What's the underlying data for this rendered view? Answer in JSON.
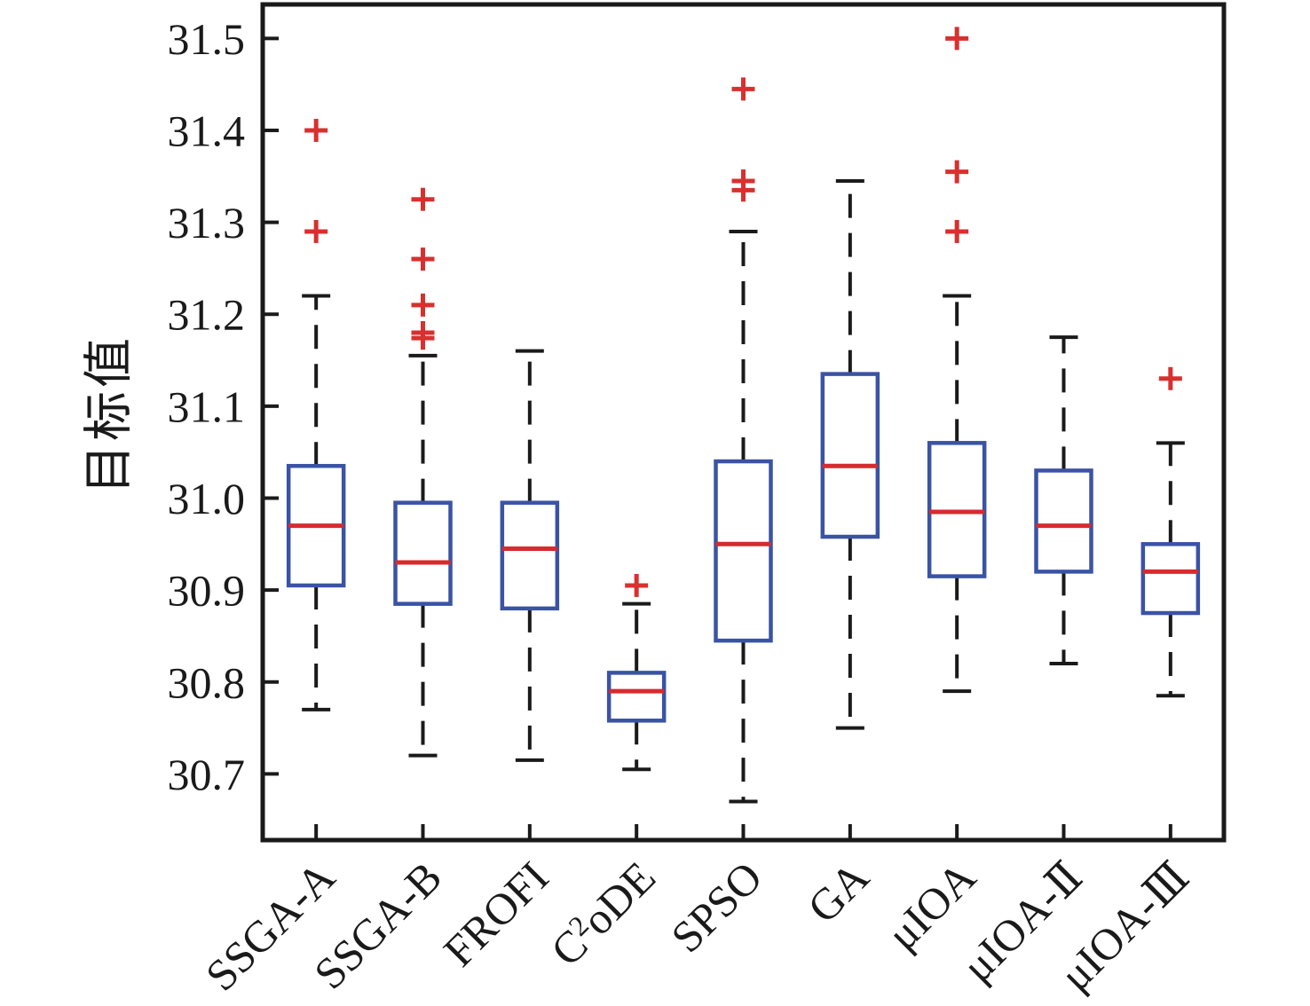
{
  "chart_data": {
    "type": "boxplot",
    "title": "",
    "xlabel": "",
    "ylabel": "目标值",
    "ylim": [
      30.628,
      31.537
    ],
    "yticks": [
      30.7,
      30.8,
      30.9,
      31.0,
      31.1,
      31.2,
      31.3,
      31.4,
      31.5
    ],
    "grid": false,
    "legend": "none",
    "categories": [
      "SSGA-A",
      "SSGA-B",
      "FROFI",
      "C^{2}oDE",
      "SPSO",
      "GA",
      "μIOA",
      "μIOA-Ⅱ",
      "μIOA-Ⅲ"
    ],
    "series": [
      {
        "name": "SSGA-A",
        "whisker_low": 30.77,
        "q1": 30.905,
        "median": 30.97,
        "q3": 31.035,
        "whisker_high": 31.22,
        "outliers": [
          31.29,
          31.4
        ]
      },
      {
        "name": "SSGA-B",
        "whisker_low": 30.72,
        "q1": 30.885,
        "median": 30.93,
        "q3": 30.995,
        "whisker_high": 31.155,
        "outliers": [
          31.174,
          31.18,
          31.21,
          31.26,
          31.325
        ]
      },
      {
        "name": "FROFI",
        "whisker_low": 30.715,
        "q1": 30.88,
        "median": 30.945,
        "q3": 30.995,
        "whisker_high": 31.16,
        "outliers": []
      },
      {
        "name": "C2oDE",
        "whisker_low": 30.705,
        "q1": 30.758,
        "median": 30.79,
        "q3": 30.81,
        "whisker_high": 30.885,
        "outliers": [
          30.905
        ]
      },
      {
        "name": "SPSO",
        "whisker_low": 30.67,
        "q1": 30.845,
        "median": 30.95,
        "q3": 31.04,
        "whisker_high": 31.29,
        "outliers": [
          31.335,
          31.345,
          31.445
        ]
      },
      {
        "name": "GA",
        "whisker_low": 30.75,
        "q1": 30.958,
        "median": 31.035,
        "q3": 31.135,
        "whisker_high": 31.345,
        "outliers": []
      },
      {
        "name": "μIOA",
        "whisker_low": 30.79,
        "q1": 30.915,
        "median": 30.985,
        "q3": 31.06,
        "whisker_high": 31.22,
        "outliers": [
          31.29,
          31.355,
          31.5
        ]
      },
      {
        "name": "μIOA-II",
        "whisker_low": 30.82,
        "q1": 30.92,
        "median": 30.97,
        "q3": 31.03,
        "whisker_high": 31.175,
        "outliers": []
      },
      {
        "name": "μIOA-III",
        "whisker_low": 30.785,
        "q1": 30.875,
        "median": 30.92,
        "q3": 30.95,
        "whisker_high": 31.06,
        "outliers": [
          31.13
        ]
      }
    ],
    "colors": {
      "box": "#3A53A4",
      "median": "#D62B2F",
      "outlier": "#D8302F",
      "axis": "#1A1A1A"
    }
  }
}
